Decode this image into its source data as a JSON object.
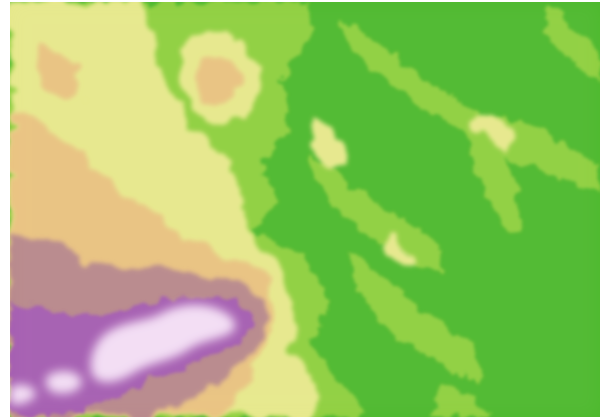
{
  "map": {
    "type": "elevation-relief",
    "colors": {
      "lowland": "#4cb82c",
      "low_hills": "#8ecf3e",
      "plateau": "#e6e88a",
      "upland": "#e9c27f",
      "highland": "#b7878a",
      "peaks": "#a45bb0",
      "summit": "#f3ddf4",
      "frame": "#ffffff"
    }
  }
}
